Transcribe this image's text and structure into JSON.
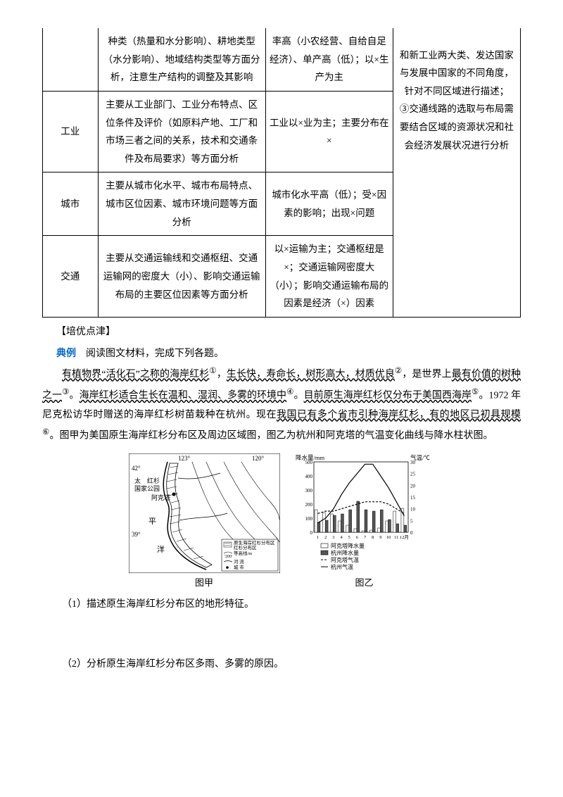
{
  "table": {
    "rows": [
      {
        "c1": "",
        "c2": "种类（热量和水分影响）、耕地类型（水分影响）、地域结构类型等方面分析，注意生产结构的调整及其影响",
        "c3": "率高（小农经营、自给自足经济）、单产高（低）；以×生产为主",
        "c4": "和新工业两大类、发达国家与发展中国家的不同角度，针对不同区域进行描述；\n③交通线路的选取与布局需要结合区域的资源状况和社会经济发展状况进行分析"
      },
      {
        "c1": "工业",
        "c2": "主要从工业部门、工业分布特点、区位条件及评价（如原料产地、工厂和市场三者之间的关系，技术和交通条件及布局要求）等方面分析",
        "c3": "工业以×业为主；主要分布在×"
      },
      {
        "c1": "城市",
        "c2": "主要从城市化水平、城市布局特点、城市区位因素、城市环境问题等方面分析",
        "c3": "城市化水平高（低）；受×因素的影响；出现×问题"
      },
      {
        "c1": "交通",
        "c2": "主要从交通运输线和交通枢纽、交通运输网的密度大（小）、影响交通运输布局的主要区位因素等方面分析",
        "c3": "以×运输为主；交通枢纽是×；交通运输网密度大（小）；影响交通运输布局的因素是经济（×）因素"
      }
    ]
  },
  "headings": {
    "peiyou": "【培优点津】",
    "example_label": "典例",
    "example_text": "阅读图文材料，完成下列各题。"
  },
  "passage": {
    "p1_u1": "有植物界“活化石”之称的海岸红杉",
    "sup1": "①",
    "p1_t1": "，",
    "p1_u2": "生长快，寿命长，树形高大，材质优良",
    "sup2": "②",
    "p1_t2": "，是世界上",
    "p1_u3": "最有价值的树种之一",
    "sup3": "③",
    "p1_t3": "。",
    "p1_u4": "海岸红杉适合生长在温和、湿润、多雾的环境中",
    "sup4": "④",
    "p1_t4": "。",
    "p1_u5": "目前原生海岸红杉仅分布于美国西海岸",
    "sup5": "⑤",
    "p1_t5": "。1972 年尼克松访华时赠送的海岸红杉树苗栽种在杭州。现在",
    "p1_u6": "我国已有多个省市引种海岸红杉，有的地区已初具规模",
    "sup6": "⑥",
    "p1_t6": "。图甲为美国原生海岸红杉分布区及周边区域图，图乙为杭州和阿克塔的气温变化曲线与降水柱状图。"
  },
  "figures": {
    "map": {
      "lon1": "123°",
      "lon2": "120°",
      "lat1": "42°",
      "lat2": "39°",
      "labels": {
        "park_line1": "太　红杉",
        "park_line2": "国家公园",
        "city": "阿克塔",
        "ocean1": "平",
        "ocean2": "洋"
      },
      "legend": {
        "area": "原生海岸红杉分布区",
        "elev_line1": "等高线/m",
        "elev_line2": "'200'",
        "river": "河 流",
        "city": "城 市"
      },
      "caption": "图甲",
      "colors": {
        "land": "#ffffff",
        "water": "#ffffff",
        "line": "#000000",
        "hatch": "#000000"
      }
    },
    "chart": {
      "y1_label": "降水量/mm",
      "y2_label": "气温/℃",
      "y1_ticks": [
        "500",
        "400",
        "300",
        "200",
        "100",
        "0"
      ],
      "y2_ticks": [
        "30",
        "25",
        "20",
        "15",
        "10",
        "5",
        "0"
      ],
      "x_ticks": [
        "1",
        "2",
        "3",
        "4",
        "5",
        "6",
        "7",
        "8",
        "9",
        "10",
        "11",
        "12月"
      ],
      "legend": {
        "akt_precip": "阿克塔降水量",
        "hz_precip": "杭州降水量",
        "akt_temp": "阿克塔气温",
        "hz_temp": "杭州气温"
      },
      "caption": "图乙",
      "colors": {
        "akt_bar": "#ffffff",
        "hz_bar": "#555555",
        "akt_line": "#000000",
        "hz_line": "#000000",
        "grid": "#000000"
      },
      "hz_precip_values": [
        70,
        85,
        120,
        130,
        160,
        220,
        160,
        150,
        160,
        90,
        60,
        50
      ],
      "akt_precip_values": [
        160,
        140,
        130,
        80,
        50,
        25,
        10,
        15,
        30,
        80,
        150,
        170
      ],
      "hz_temp_values": [
        4,
        6,
        10,
        16,
        21,
        25,
        29,
        29,
        24,
        19,
        13,
        7
      ],
      "akt_temp_values": [
        8,
        9,
        9,
        10,
        11,
        12,
        13,
        13,
        13,
        12,
        10,
        8
      ]
    }
  },
  "questions": {
    "q1": "（1）描述原生海岸红杉分布区的地形特征。",
    "q2": "（2）分析原生海岸红杉分布区多雨、多雾的原因。"
  }
}
